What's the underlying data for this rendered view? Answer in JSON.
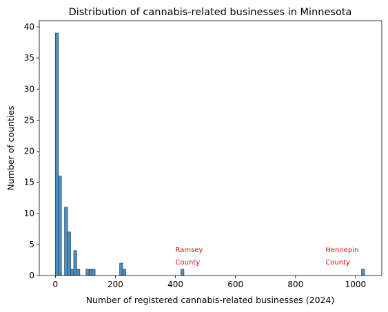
{
  "chart_data": {
    "type": "bar",
    "subtype": "histogram",
    "title": "Distribution of cannabis-related businesses in Minnesota",
    "xlabel": "Number of registered cannabis-related businesses (2024)",
    "ylabel": "Number of counties",
    "xlim": [
      -53.5,
      1087.5
    ],
    "ylim": [
      0,
      41
    ],
    "xticks": [
      0,
      200,
      400,
      600,
      800,
      1000
    ],
    "yticks": [
      0,
      5,
      10,
      15,
      20,
      25,
      30,
      35,
      40
    ],
    "grid": false,
    "bar_color": "#4f8fbf",
    "bar_edge_color": "#1f3d55",
    "bin_width": 10.2,
    "bins": [
      {
        "start": 0,
        "count": 39
      },
      {
        "start": 10.2,
        "count": 16
      },
      {
        "start": 20.4,
        "count": 0
      },
      {
        "start": 30.6,
        "count": 11
      },
      {
        "start": 40.8,
        "count": 7
      },
      {
        "start": 51,
        "count": 1
      },
      {
        "start": 61.2,
        "count": 4
      },
      {
        "start": 71.4,
        "count": 1
      },
      {
        "start": 102,
        "count": 1
      },
      {
        "start": 112.2,
        "count": 1
      },
      {
        "start": 122.4,
        "count": 1
      },
      {
        "start": 214.2,
        "count": 2
      },
      {
        "start": 224.4,
        "count": 1
      },
      {
        "start": 418.2,
        "count": 1
      },
      {
        "start": 1020,
        "count": 1
      }
    ],
    "annotations": [
      {
        "lines": [
          "Ramsey",
          "County"
        ],
        "x": 400,
        "y": 4.2,
        "color": "#ff0000"
      },
      {
        "lines": [
          "Hennepin",
          "County"
        ],
        "x": 900,
        "y": 4.2,
        "color": "#ff0000"
      }
    ]
  }
}
